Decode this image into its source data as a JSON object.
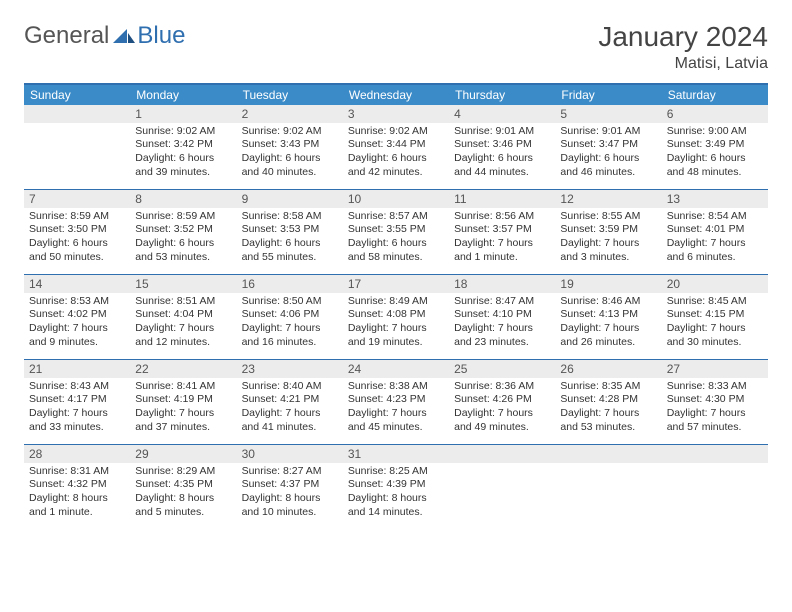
{
  "brand": {
    "word1": "General",
    "word2": "Blue"
  },
  "title": "January 2024",
  "location": "Matisi, Latvia",
  "colors": {
    "header_bg": "#3b8bc8",
    "rule": "#2f6fb0",
    "daynum_bg": "#ececec",
    "page_bg": "#ffffff",
    "text": "#333333"
  },
  "day_names": [
    "Sunday",
    "Monday",
    "Tuesday",
    "Wednesday",
    "Thursday",
    "Friday",
    "Saturday"
  ],
  "weeks": [
    [
      null,
      {
        "n": "1",
        "sr": "Sunrise: 9:02 AM",
        "ss": "Sunset: 3:42 PM",
        "dl": "Daylight: 6 hours and 39 minutes."
      },
      {
        "n": "2",
        "sr": "Sunrise: 9:02 AM",
        "ss": "Sunset: 3:43 PM",
        "dl": "Daylight: 6 hours and 40 minutes."
      },
      {
        "n": "3",
        "sr": "Sunrise: 9:02 AM",
        "ss": "Sunset: 3:44 PM",
        "dl": "Daylight: 6 hours and 42 minutes."
      },
      {
        "n": "4",
        "sr": "Sunrise: 9:01 AM",
        "ss": "Sunset: 3:46 PM",
        "dl": "Daylight: 6 hours and 44 minutes."
      },
      {
        "n": "5",
        "sr": "Sunrise: 9:01 AM",
        "ss": "Sunset: 3:47 PM",
        "dl": "Daylight: 6 hours and 46 minutes."
      },
      {
        "n": "6",
        "sr": "Sunrise: 9:00 AM",
        "ss": "Sunset: 3:49 PM",
        "dl": "Daylight: 6 hours and 48 minutes."
      }
    ],
    [
      {
        "n": "7",
        "sr": "Sunrise: 8:59 AM",
        "ss": "Sunset: 3:50 PM",
        "dl": "Daylight: 6 hours and 50 minutes."
      },
      {
        "n": "8",
        "sr": "Sunrise: 8:59 AM",
        "ss": "Sunset: 3:52 PM",
        "dl": "Daylight: 6 hours and 53 minutes."
      },
      {
        "n": "9",
        "sr": "Sunrise: 8:58 AM",
        "ss": "Sunset: 3:53 PM",
        "dl": "Daylight: 6 hours and 55 minutes."
      },
      {
        "n": "10",
        "sr": "Sunrise: 8:57 AM",
        "ss": "Sunset: 3:55 PM",
        "dl": "Daylight: 6 hours and 58 minutes."
      },
      {
        "n": "11",
        "sr": "Sunrise: 8:56 AM",
        "ss": "Sunset: 3:57 PM",
        "dl": "Daylight: 7 hours and 1 minute."
      },
      {
        "n": "12",
        "sr": "Sunrise: 8:55 AM",
        "ss": "Sunset: 3:59 PM",
        "dl": "Daylight: 7 hours and 3 minutes."
      },
      {
        "n": "13",
        "sr": "Sunrise: 8:54 AM",
        "ss": "Sunset: 4:01 PM",
        "dl": "Daylight: 7 hours and 6 minutes."
      }
    ],
    [
      {
        "n": "14",
        "sr": "Sunrise: 8:53 AM",
        "ss": "Sunset: 4:02 PM",
        "dl": "Daylight: 7 hours and 9 minutes."
      },
      {
        "n": "15",
        "sr": "Sunrise: 8:51 AM",
        "ss": "Sunset: 4:04 PM",
        "dl": "Daylight: 7 hours and 12 minutes."
      },
      {
        "n": "16",
        "sr": "Sunrise: 8:50 AM",
        "ss": "Sunset: 4:06 PM",
        "dl": "Daylight: 7 hours and 16 minutes."
      },
      {
        "n": "17",
        "sr": "Sunrise: 8:49 AM",
        "ss": "Sunset: 4:08 PM",
        "dl": "Daylight: 7 hours and 19 minutes."
      },
      {
        "n": "18",
        "sr": "Sunrise: 8:47 AM",
        "ss": "Sunset: 4:10 PM",
        "dl": "Daylight: 7 hours and 23 minutes."
      },
      {
        "n": "19",
        "sr": "Sunrise: 8:46 AM",
        "ss": "Sunset: 4:13 PM",
        "dl": "Daylight: 7 hours and 26 minutes."
      },
      {
        "n": "20",
        "sr": "Sunrise: 8:45 AM",
        "ss": "Sunset: 4:15 PM",
        "dl": "Daylight: 7 hours and 30 minutes."
      }
    ],
    [
      {
        "n": "21",
        "sr": "Sunrise: 8:43 AM",
        "ss": "Sunset: 4:17 PM",
        "dl": "Daylight: 7 hours and 33 minutes."
      },
      {
        "n": "22",
        "sr": "Sunrise: 8:41 AM",
        "ss": "Sunset: 4:19 PM",
        "dl": "Daylight: 7 hours and 37 minutes."
      },
      {
        "n": "23",
        "sr": "Sunrise: 8:40 AM",
        "ss": "Sunset: 4:21 PM",
        "dl": "Daylight: 7 hours and 41 minutes."
      },
      {
        "n": "24",
        "sr": "Sunrise: 8:38 AM",
        "ss": "Sunset: 4:23 PM",
        "dl": "Daylight: 7 hours and 45 minutes."
      },
      {
        "n": "25",
        "sr": "Sunrise: 8:36 AM",
        "ss": "Sunset: 4:26 PM",
        "dl": "Daylight: 7 hours and 49 minutes."
      },
      {
        "n": "26",
        "sr": "Sunrise: 8:35 AM",
        "ss": "Sunset: 4:28 PM",
        "dl": "Daylight: 7 hours and 53 minutes."
      },
      {
        "n": "27",
        "sr": "Sunrise: 8:33 AM",
        "ss": "Sunset: 4:30 PM",
        "dl": "Daylight: 7 hours and 57 minutes."
      }
    ],
    [
      {
        "n": "28",
        "sr": "Sunrise: 8:31 AM",
        "ss": "Sunset: 4:32 PM",
        "dl": "Daylight: 8 hours and 1 minute."
      },
      {
        "n": "29",
        "sr": "Sunrise: 8:29 AM",
        "ss": "Sunset: 4:35 PM",
        "dl": "Daylight: 8 hours and 5 minutes."
      },
      {
        "n": "30",
        "sr": "Sunrise: 8:27 AM",
        "ss": "Sunset: 4:37 PM",
        "dl": "Daylight: 8 hours and 10 minutes."
      },
      {
        "n": "31",
        "sr": "Sunrise: 8:25 AM",
        "ss": "Sunset: 4:39 PM",
        "dl": "Daylight: 8 hours and 14 minutes."
      },
      null,
      null,
      null
    ]
  ]
}
